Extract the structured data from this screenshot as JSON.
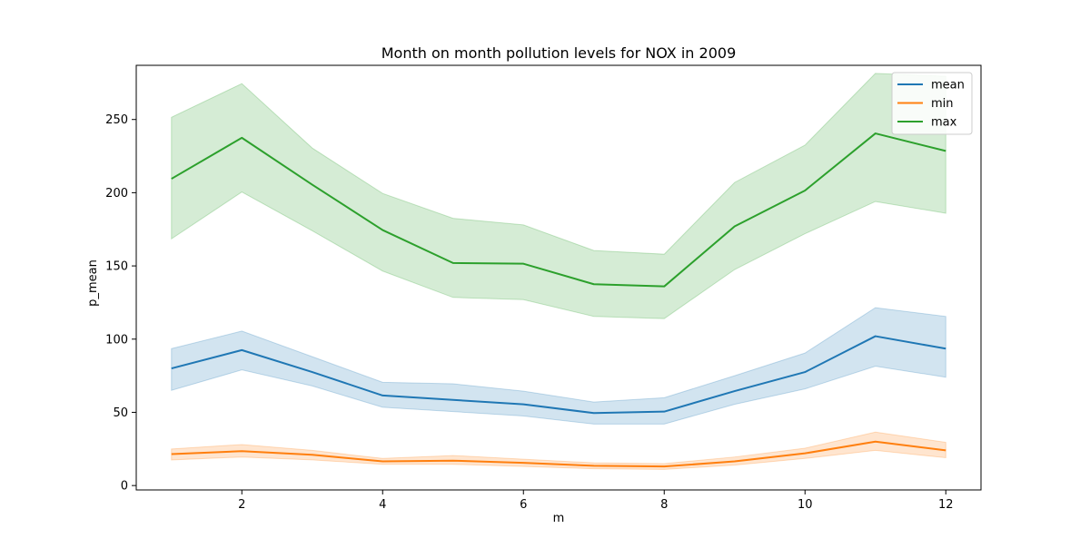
{
  "chart_data": {
    "type": "line",
    "title": "Month on month pollution levels for NOX in 2009",
    "xlabel": "m",
    "ylabel": "p_mean",
    "x": [
      1,
      2,
      3,
      4,
      5,
      6,
      7,
      8,
      9,
      10,
      11,
      12
    ],
    "xlim": [
      0.5,
      12.5
    ],
    "ylim": [
      -3,
      287
    ],
    "xticks": [
      2,
      4,
      6,
      8,
      10,
      12
    ],
    "yticks": [
      0,
      50,
      100,
      150,
      200,
      250
    ],
    "legend_position": "top-right",
    "grid": false,
    "series": [
      {
        "name": "mean",
        "color": "#1f77b4",
        "values": [
          80,
          92.5,
          77.5,
          61.5,
          58.5,
          55.5,
          49.5,
          50.5,
          64.5,
          77.5,
          102,
          93.5
        ],
        "lower": [
          65,
          79,
          68,
          53.5,
          50.5,
          47.5,
          42,
          42,
          55.5,
          66,
          81.5,
          74
        ],
        "upper": [
          93.5,
          105.5,
          88,
          70.5,
          69.5,
          64.5,
          57,
          60,
          75,
          90.5,
          121.5,
          115.5
        ]
      },
      {
        "name": "min",
        "color": "#ff7f0e",
        "values": [
          21.5,
          23.5,
          21,
          16.5,
          17,
          15.5,
          13.5,
          13,
          16.5,
          22,
          30,
          24
        ],
        "lower": [
          17.5,
          19.5,
          17.5,
          14.5,
          14.5,
          13,
          11.5,
          11,
          14,
          18.5,
          24,
          19
        ],
        "upper": [
          25,
          28,
          24,
          18.5,
          20.5,
          18,
          15.5,
          15,
          19.5,
          25.5,
          36.5,
          29.5
        ]
      },
      {
        "name": "max",
        "color": "#2ca02c",
        "values": [
          209.5,
          237.5,
          205.5,
          174.5,
          152,
          151.5,
          137.5,
          136,
          177,
          201.5,
          240.5,
          228.5
        ],
        "lower": [
          168.5,
          200.5,
          174,
          146.5,
          128.5,
          127,
          115.5,
          114,
          147.5,
          172,
          194,
          186
        ],
        "upper": [
          251.5,
          274.5,
          230.5,
          199.5,
          182.5,
          178,
          160.5,
          158,
          207,
          232.5,
          281.5,
          279.5
        ]
      }
    ]
  }
}
